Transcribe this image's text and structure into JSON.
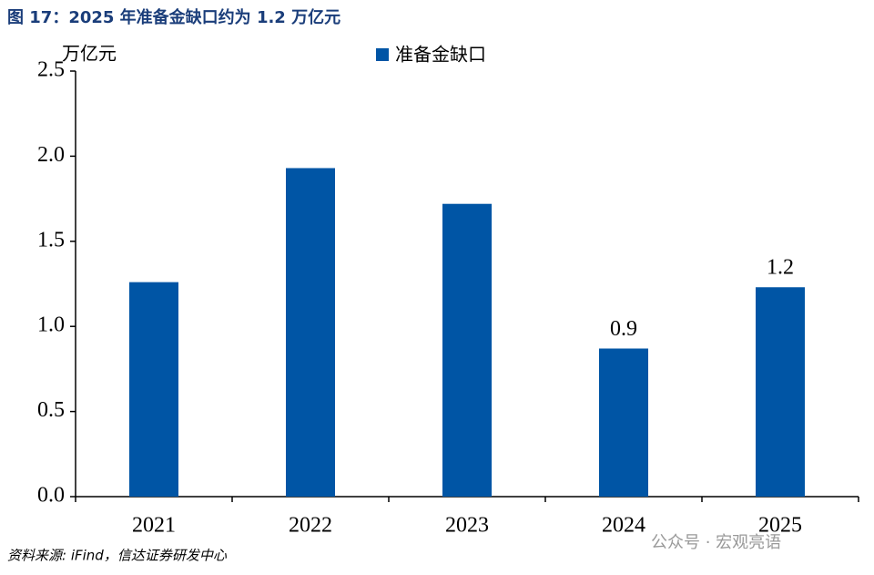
{
  "chart_data": {
    "type": "bar",
    "title": "图 17：2025 年准备金缺口约为 1.2 万亿元",
    "y_label": "万亿元",
    "categories": [
      "2021",
      "2022",
      "2023",
      "2024",
      "2025"
    ],
    "series": [
      {
        "name": "准备金缺口",
        "color": "#0055a5",
        "values": [
          1.26,
          1.93,
          1.72,
          0.87,
          1.23
        ],
        "value_labels": [
          null,
          null,
          null,
          "0.9",
          "1.2"
        ]
      }
    ],
    "ylim": [
      0,
      2.5
    ],
    "yticks": [
      {
        "value": 0,
        "label": "0.0"
      },
      0.5,
      {
        "value": 1,
        "label": "1.0"
      },
      1.5,
      {
        "value": 2,
        "label": "2.0"
      },
      2.5
    ],
    "grid": false,
    "legend": "top",
    "source": "资料来源: iFind，信达证券研发中心",
    "watermark": "公众号 · 宏观亮语"
  }
}
